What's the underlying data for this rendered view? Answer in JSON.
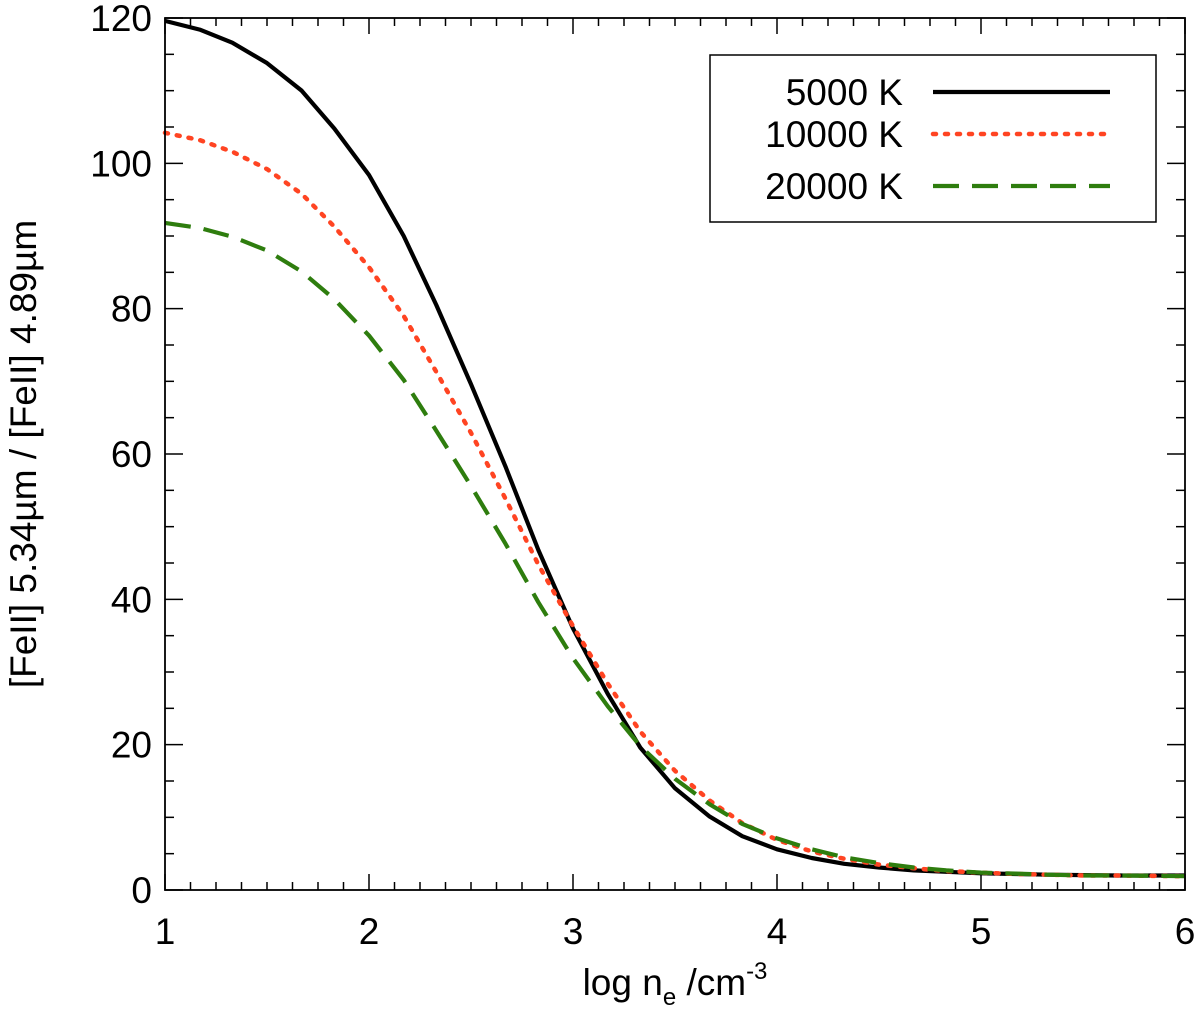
{
  "chart_data": {
    "type": "line",
    "xlabel": {
      "main": "log n",
      "sub": "e",
      "unit": " /cm",
      "sup": "-3"
    },
    "ylabel": "[FeII] 5.34µm / [FeII] 4.89µm",
    "xlim": [
      1,
      6
    ],
    "ylim": [
      0,
      120
    ],
    "x_ticks": [
      1,
      2,
      3,
      4,
      5,
      6
    ],
    "y_ticks": [
      0,
      20,
      40,
      60,
      80,
      100,
      120
    ],
    "x_minor_step": 0.125,
    "y_minor_step": 5,
    "grid": false,
    "legend_position": "top-right",
    "series": [
      {
        "name": "5000 K",
        "color": "#000000",
        "style": "solid",
        "x": [
          1.0,
          1.17,
          1.33,
          1.5,
          1.67,
          1.83,
          2.0,
          2.17,
          2.33,
          2.5,
          2.67,
          2.83,
          3.0,
          3.17,
          3.33,
          3.5,
          3.67,
          3.83,
          4.0,
          4.17,
          4.33,
          4.5,
          4.67,
          4.83,
          5.0,
          5.17,
          5.33,
          5.5,
          5.67,
          5.83,
          6.0
        ],
        "y": [
          119.6,
          118.4,
          116.6,
          113.8,
          110.0,
          104.8,
          98.4,
          90.0,
          80.5,
          69.6,
          58.2,
          46.8,
          36.0,
          27.0,
          19.6,
          14.0,
          10.1,
          7.4,
          5.6,
          4.4,
          3.6,
          3.1,
          2.7,
          2.5,
          2.3,
          2.2,
          2.1,
          2.05,
          2.0,
          2.0,
          2.0
        ]
      },
      {
        "name": "10000 K",
        "color": "#ff4422",
        "style": "dotted",
        "x": [
          1.0,
          1.17,
          1.33,
          1.5,
          1.67,
          1.83,
          2.0,
          2.17,
          2.33,
          2.5,
          2.67,
          2.83,
          3.0,
          3.17,
          3.33,
          3.5,
          3.67,
          3.83,
          4.0,
          4.17,
          4.33,
          4.5,
          4.67,
          4.83,
          5.0,
          5.17,
          5.33,
          5.5,
          5.67,
          5.83,
          6.0
        ],
        "y": [
          104.2,
          103.2,
          101.6,
          99.2,
          95.8,
          91.3,
          85.7,
          79.0,
          71.3,
          62.9,
          53.8,
          44.8,
          36.3,
          28.4,
          21.8,
          16.4,
          12.3,
          9.2,
          6.9,
          5.3,
          4.3,
          3.5,
          3.0,
          2.6,
          2.4,
          2.2,
          2.1,
          2.0,
          2.0,
          1.95,
          1.9
        ]
      },
      {
        "name": "20000 K",
        "color": "#2e7d0e",
        "style": "dashed",
        "x": [
          1.0,
          1.17,
          1.33,
          1.5,
          1.67,
          1.83,
          2.0,
          2.17,
          2.33,
          2.5,
          2.67,
          2.83,
          3.0,
          3.17,
          3.33,
          3.5,
          3.67,
          3.83,
          4.0,
          4.17,
          4.33,
          4.5,
          4.67,
          4.83,
          5.0,
          5.17,
          5.33,
          5.5,
          5.67,
          5.83,
          6.0
        ],
        "y": [
          91.8,
          91.1,
          89.9,
          88.0,
          85.1,
          81.3,
          76.3,
          70.2,
          63.2,
          55.6,
          47.6,
          39.6,
          31.9,
          25.3,
          19.8,
          15.3,
          11.8,
          9.1,
          7.1,
          5.6,
          4.5,
          3.7,
          3.1,
          2.7,
          2.4,
          2.25,
          2.1,
          2.0,
          2.0,
          1.95,
          1.9
        ]
      }
    ]
  }
}
